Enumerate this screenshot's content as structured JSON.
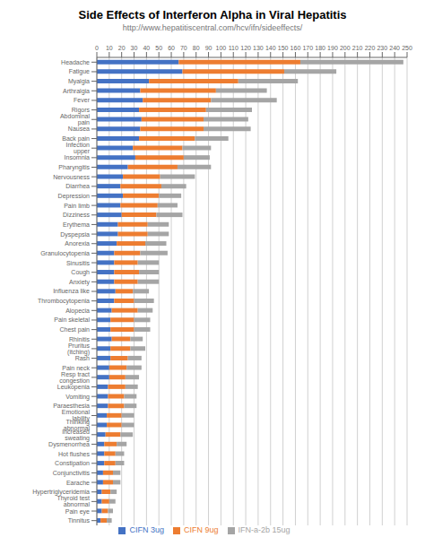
{
  "chart_data": {
    "type": "bar",
    "orientation": "horizontal",
    "stacked": true,
    "title": "Side Effects of Interferon Alpha in Viral Hepatitis",
    "subtitle": "http://www.hepatitiscentral.com/hcv/ifn/sideeffects/",
    "categories": [
      "Headache",
      "Fatigue",
      "Myalgia",
      "Arthralgia",
      "Fever",
      "Rigors",
      "Abdominal pain",
      "Nausea",
      "Back pain",
      "Infection upper",
      "Insomnia",
      "Pharyngitis",
      "Nervousness",
      "Diarrhea",
      "Depression",
      "Pain limb",
      "Dizziness",
      "Erythema",
      "Dyspepsia",
      "Anorexia",
      "Granulocytopenia",
      "Sinusitis",
      "Cough",
      "Anxiety",
      "Influenza like",
      "Thrombocytopenia",
      "Alopecia",
      "Pain skeletal",
      "Chest pain",
      "Rhinitis",
      "Pruritus (itching)",
      "Rash",
      "Pain neck",
      "Resp tract congestion",
      "Leukopenia",
      "Vomiting",
      "Paraesthesia",
      "Emotional lability",
      "Thinking abnormal",
      "Increased sweating",
      "Dysmenorrhea",
      "Hot flushes",
      "Constipation",
      "Conjunctivitis",
      "Earache",
      "Hypertriglyceridemia",
      "Thyroid test abnormal",
      "Pain eye",
      "Tinnitus"
    ],
    "series": [
      {
        "name": "CIFN 3ug",
        "color": "#4472C4",
        "values": [
          66,
          69,
          42,
          35,
          37,
          34,
          36,
          35,
          34,
          29,
          31,
          25,
          21,
          19,
          21,
          19,
          20,
          17,
          17,
          16,
          14,
          14,
          14,
          14,
          15,
          14,
          12,
          11,
          11,
          12,
          11,
          11,
          10,
          10,
          9,
          9,
          9,
          8,
          8,
          7,
          6,
          6,
          6,
          5,
          5,
          4,
          4,
          4,
          3
        ]
      },
      {
        "name": "CIFN 9ug",
        "color": "#ED7D31",
        "values": [
          98,
          82,
          72,
          61,
          55,
          54,
          50,
          51,
          45,
          40,
          39,
          40,
          30,
          33,
          29,
          30,
          28,
          24,
          24,
          23,
          21,
          19,
          20,
          19,
          14,
          16,
          21,
          19,
          19,
          15,
          16,
          14,
          14,
          13,
          14,
          13,
          13,
          12,
          12,
          12,
          10,
          9,
          9,
          8,
          8,
          7,
          6,
          5,
          5
        ]
      },
      {
        "name": "IFN-a-2b 15ug",
        "color": "#A5A5A5",
        "values": [
          83,
          42,
          48,
          41,
          53,
          37,
          36,
          38,
          27,
          23,
          21,
          27,
          28,
          20,
          18,
          16,
          21,
          17,
          17,
          17,
          22,
          17,
          16,
          17,
          13,
          16,
          12,
          13,
          13,
          10,
          12,
          11,
          12,
          11,
          10,
          10,
          10,
          10,
          10,
          10,
          8,
          7,
          7,
          6,
          6,
          5,
          5,
          4,
          4
        ]
      }
    ],
    "xlim": [
      0,
      250
    ],
    "xticks": [
      0,
      10,
      20,
      30,
      40,
      50,
      60,
      70,
      80,
      90,
      100,
      110,
      120,
      130,
      140,
      150,
      160,
      170,
      180,
      190,
      200,
      210,
      220,
      230,
      240,
      250
    ],
    "grid": true,
    "legend": "bottom"
  }
}
